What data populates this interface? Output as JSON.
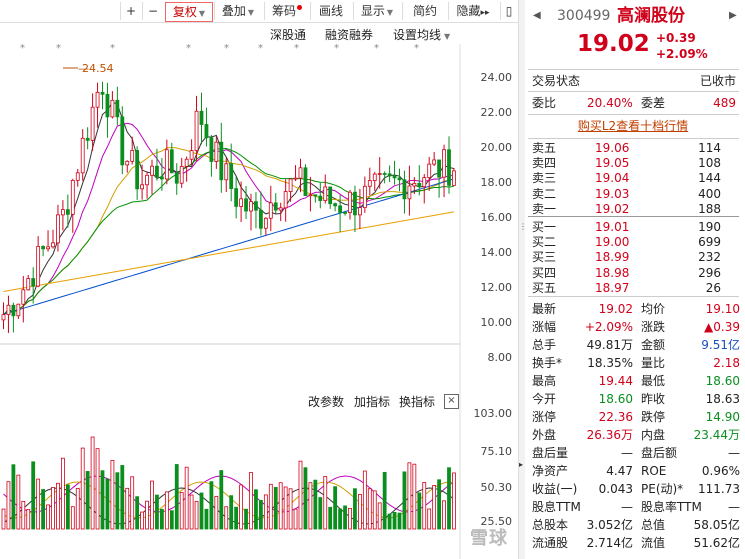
{
  "toolbar": {
    "plus": "+",
    "minus": "−",
    "fuquan": "复权",
    "diejia": "叠加",
    "chouma": "筹码",
    "huaxian": "画线",
    "xianshi": "显示",
    "jianyue": "简约",
    "yincang": "隐藏",
    "expand": "▸▸",
    "panel_btn": "▯"
  },
  "subbar": {
    "shengutong": "深股通",
    "rongzi": "融资融券",
    "shezhi": "设置均线",
    "high_label": "24.54"
  },
  "price_axis": [
    "24.00",
    "22.00",
    "20.00",
    "18.00",
    "16.00",
    "14.00",
    "12.00",
    "10.00",
    "8.00"
  ],
  "vol_axis": [
    "103.00",
    "75.10",
    "50.30",
    "25.50"
  ],
  "indicator_bar": {
    "gaicanshu": "改参数",
    "jiazhibiao": "加指标",
    "huanzhibiao": "换指标",
    "close": "×"
  },
  "header": {
    "code": "300499",
    "name": "高澜股份",
    "price": "19.02",
    "change": "+0.39",
    "change_pct": "+2.09%"
  },
  "status": {
    "label": "交易状态",
    "value": "已收市"
  },
  "weibi": {
    "label": "委比",
    "value": "20.40%",
    "label2": "委差",
    "value2": "489"
  },
  "l2_link": "购买L2查看十档行情",
  "asks": [
    {
      "label": "卖五",
      "price": "19.06",
      "vol": "114"
    },
    {
      "label": "卖四",
      "price": "19.05",
      "vol": "108"
    },
    {
      "label": "卖三",
      "price": "19.04",
      "vol": "144"
    },
    {
      "label": "卖二",
      "price": "19.03",
      "vol": "400"
    },
    {
      "label": "卖一",
      "price": "19.02",
      "vol": "188"
    }
  ],
  "bids": [
    {
      "label": "买一",
      "price": "19.01",
      "vol": "190"
    },
    {
      "label": "买二",
      "price": "19.00",
      "vol": "699"
    },
    {
      "label": "买三",
      "price": "18.99",
      "vol": "232"
    },
    {
      "label": "买四",
      "price": "18.98",
      "vol": "296"
    },
    {
      "label": "买五",
      "price": "18.97",
      "vol": "26"
    }
  ],
  "stats": [
    {
      "l1": "最新",
      "v1": "19.02",
      "c1": "red",
      "l2": "均价",
      "v2": "19.10",
      "c2": "red"
    },
    {
      "l1": "涨幅",
      "v1": "+2.09%",
      "c1": "red",
      "l2": "涨跌",
      "v2": "▲0.39",
      "c2": "red"
    },
    {
      "l1": "总手",
      "v1": "49.81万",
      "c1": "",
      "l2": "金额",
      "v2": "9.51亿",
      "c2": "blue"
    },
    {
      "l1": "换手*",
      "v1": "18.35%",
      "c1": "",
      "l2": "量比",
      "v2": "2.18",
      "c2": "red"
    },
    {
      "l1": "最高",
      "v1": "19.44",
      "c1": "red",
      "l2": "最低",
      "v2": "18.60",
      "c2": "green"
    },
    {
      "l1": "今开",
      "v1": "18.60",
      "c1": "green",
      "l2": "昨收",
      "v2": "18.63",
      "c2": ""
    },
    {
      "l1": "涨停",
      "v1": "22.36",
      "c1": "red",
      "l2": "跌停",
      "v2": "14.90",
      "c2": "green"
    },
    {
      "l1": "外盘",
      "v1": "26.36万",
      "c1": "red",
      "l2": "内盘",
      "v2": "23.44万",
      "c2": "green"
    },
    {
      "l1": "盘后量",
      "v1": "—",
      "c1": "",
      "l2": "盘后额",
      "v2": "—",
      "c2": ""
    },
    {
      "l1": "净资产",
      "v1": "4.47",
      "c1": "",
      "l2": "ROE",
      "v2": "0.96%",
      "c2": ""
    },
    {
      "l1": "收益(一)",
      "v1": "0.043",
      "c1": "",
      "l2": "PE(动)*",
      "v2": "111.73",
      "c2": ""
    },
    {
      "l1": "股息TTM",
      "v1": "—",
      "c1": "",
      "l2": "股息率TTM",
      "v2": "—",
      "c2": ""
    },
    {
      "l1": "总股本",
      "v1": "3.052亿",
      "c1": "",
      "l2": "总值",
      "v2": "58.05亿",
      "c2": ""
    },
    {
      "l1": "流通股",
      "v1": "2.714亿",
      "c1": "",
      "l2": "流值",
      "v2": "51.62亿",
      "c2": ""
    }
  ],
  "watermark": "雪球",
  "colors": {
    "up": "#d0021b",
    "down": "#0a8f1f",
    "ma5": "#333333",
    "ma10": "#d0a000",
    "ma20": "#c000c0",
    "ma30": "#009000",
    "ma60": "#0050d0",
    "ma120": "#e8a000"
  }
}
